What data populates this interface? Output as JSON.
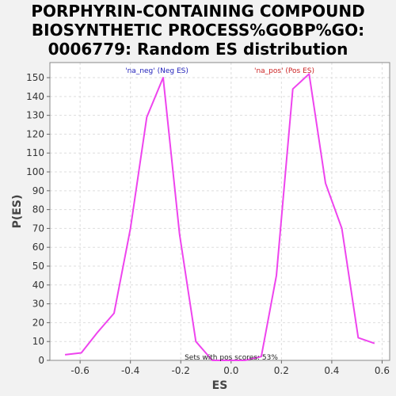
{
  "title_lines": [
    "PORPHYRIN-CONTAINING COMPOUND",
    "BIOSYNTHETIC PROCESS%GOBP%GO:",
    "0006779: Random ES distribution"
  ],
  "chart_data": {
    "type": "line",
    "title": "PORPHYRIN-CONTAINING COMPOUND BIOSYNTHETIC PROCESS%GOBP%GO: 0006779: Random ES distribution",
    "xlabel": "ES",
    "ylabel": "P(ES)",
    "xlim": [
      -0.72,
      0.63
    ],
    "ylim": [
      0,
      158
    ],
    "xticks": [
      -0.6,
      -0.4,
      -0.2,
      0.0,
      0.2,
      0.4,
      0.6
    ],
    "xtick_labels": [
      "-0.6",
      "-0.4",
      "-0.2",
      "0.0",
      "0.2",
      "0.4",
      "0.6"
    ],
    "yticks": [
      0,
      10,
      20,
      30,
      40,
      50,
      60,
      70,
      80,
      90,
      100,
      110,
      120,
      130,
      140,
      150
    ],
    "ytick_labels": [
      "0",
      "10",
      "20",
      "30",
      "40",
      "50",
      "60",
      "70",
      "80",
      "90",
      "100",
      "110",
      "120",
      "130",
      "140",
      "150"
    ],
    "grid": true,
    "series": [
      {
        "color": "#ee44ee",
        "x": [
          -0.66,
          -0.595,
          -0.53,
          -0.465,
          -0.4,
          -0.335,
          -0.27,
          -0.205,
          -0.14,
          -0.075,
          -0.01,
          0.055,
          0.12,
          0.18,
          0.245,
          0.31,
          0.375,
          0.44,
          0.505,
          0.57
        ],
        "y": [
          3,
          4,
          15,
          25,
          70,
          129,
          150,
          67,
          10,
          0,
          0,
          0,
          2,
          45,
          144,
          152,
          94,
          70,
          12,
          9
        ]
      }
    ],
    "legend": [
      {
        "label": "'na_neg' (Neg ES)",
        "color": "#2222bb",
        "placement": "top-left"
      },
      {
        "label": "'na_pos' (Pos ES)",
        "color": "#cc2222",
        "placement": "top-right"
      }
    ],
    "annotation": "Sets with pos scores: 53%"
  }
}
